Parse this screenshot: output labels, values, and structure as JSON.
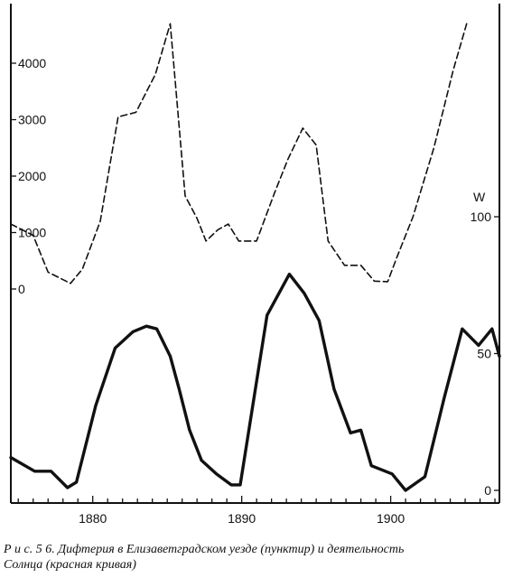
{
  "chart_data": {
    "type": "line",
    "title": "",
    "x_range": [
      1874.5,
      1907.3
    ],
    "x_ticks": [
      1880,
      1890,
      1900
    ],
    "x_tick_labels": [
      "1880",
      "1890",
      "1900"
    ],
    "left_axis": {
      "ticks": [
        0,
        1000,
        2000,
        3000,
        4000
      ],
      "tick_labels": [
        "0",
        "1000",
        "2000",
        "3000",
        "4000"
      ],
      "range": [
        -200,
        4700
      ]
    },
    "right_axis": {
      "label": "W",
      "ticks": [
        0,
        50,
        100
      ],
      "tick_labels": [
        "0",
        "50",
        "100"
      ],
      "range": [
        0,
        100
      ]
    },
    "series": [
      {
        "style": "dashed",
        "axis": "left",
        "x": [
          1874.5,
          1876,
          1877,
          1878.5,
          1879.3,
          1880.5,
          1881.7,
          1882.9,
          1884.2,
          1885.2,
          1886.2,
          1887,
          1887.6,
          1888.4,
          1889.1,
          1889.8,
          1891,
          1892.2,
          1893.1,
          1894.1,
          1895,
          1895.8,
          1896.9,
          1898,
          1898.9,
          1899.8,
          1900.4,
          1901.5,
          1902.9,
          1904.2,
          1905.1
        ],
        "y": [
          1150,
          950,
          300,
          100,
          350,
          1200,
          3050,
          3130,
          3800,
          4700,
          1650,
          1250,
          850,
          1050,
          1150,
          850,
          850,
          1700,
          2300,
          2850,
          2550,
          850,
          420,
          420,
          140,
          130,
          550,
          1280,
          2500,
          3880,
          4700
        ]
      },
      {
        "style": "solid",
        "axis": "right",
        "x": [
          1874.5,
          1876.1,
          1877.2,
          1878.3,
          1878.9,
          1880.2,
          1881.5,
          1882.7,
          1883.6,
          1884.3,
          1885.2,
          1885.8,
          1886.5,
          1887.3,
          1888.3,
          1889.3,
          1889.9,
          1891.7,
          1893.2,
          1894.2,
          1895.2,
          1896.2,
          1897.3,
          1898,
          1898.7,
          1900.1,
          1901,
          1902.3,
          1903.6,
          1904.8,
          1905.9,
          1906.8,
          1907.3
        ],
        "y": [
          12,
          7,
          7,
          1,
          3,
          31,
          52,
          58,
          60,
          59,
          49,
          37,
          22,
          11,
          6,
          2,
          2,
          64,
          79,
          72,
          62,
          37,
          21,
          22,
          9,
          6,
          0,
          5,
          34,
          59,
          53,
          59,
          49
        ]
      }
    ]
  },
  "caption": {
    "line1": "Р и с.  5 6.  Дифтерия в Елизаветградском уезде (пунктир) и деятельность",
    "line2": "Солнца (красная кривая)"
  }
}
